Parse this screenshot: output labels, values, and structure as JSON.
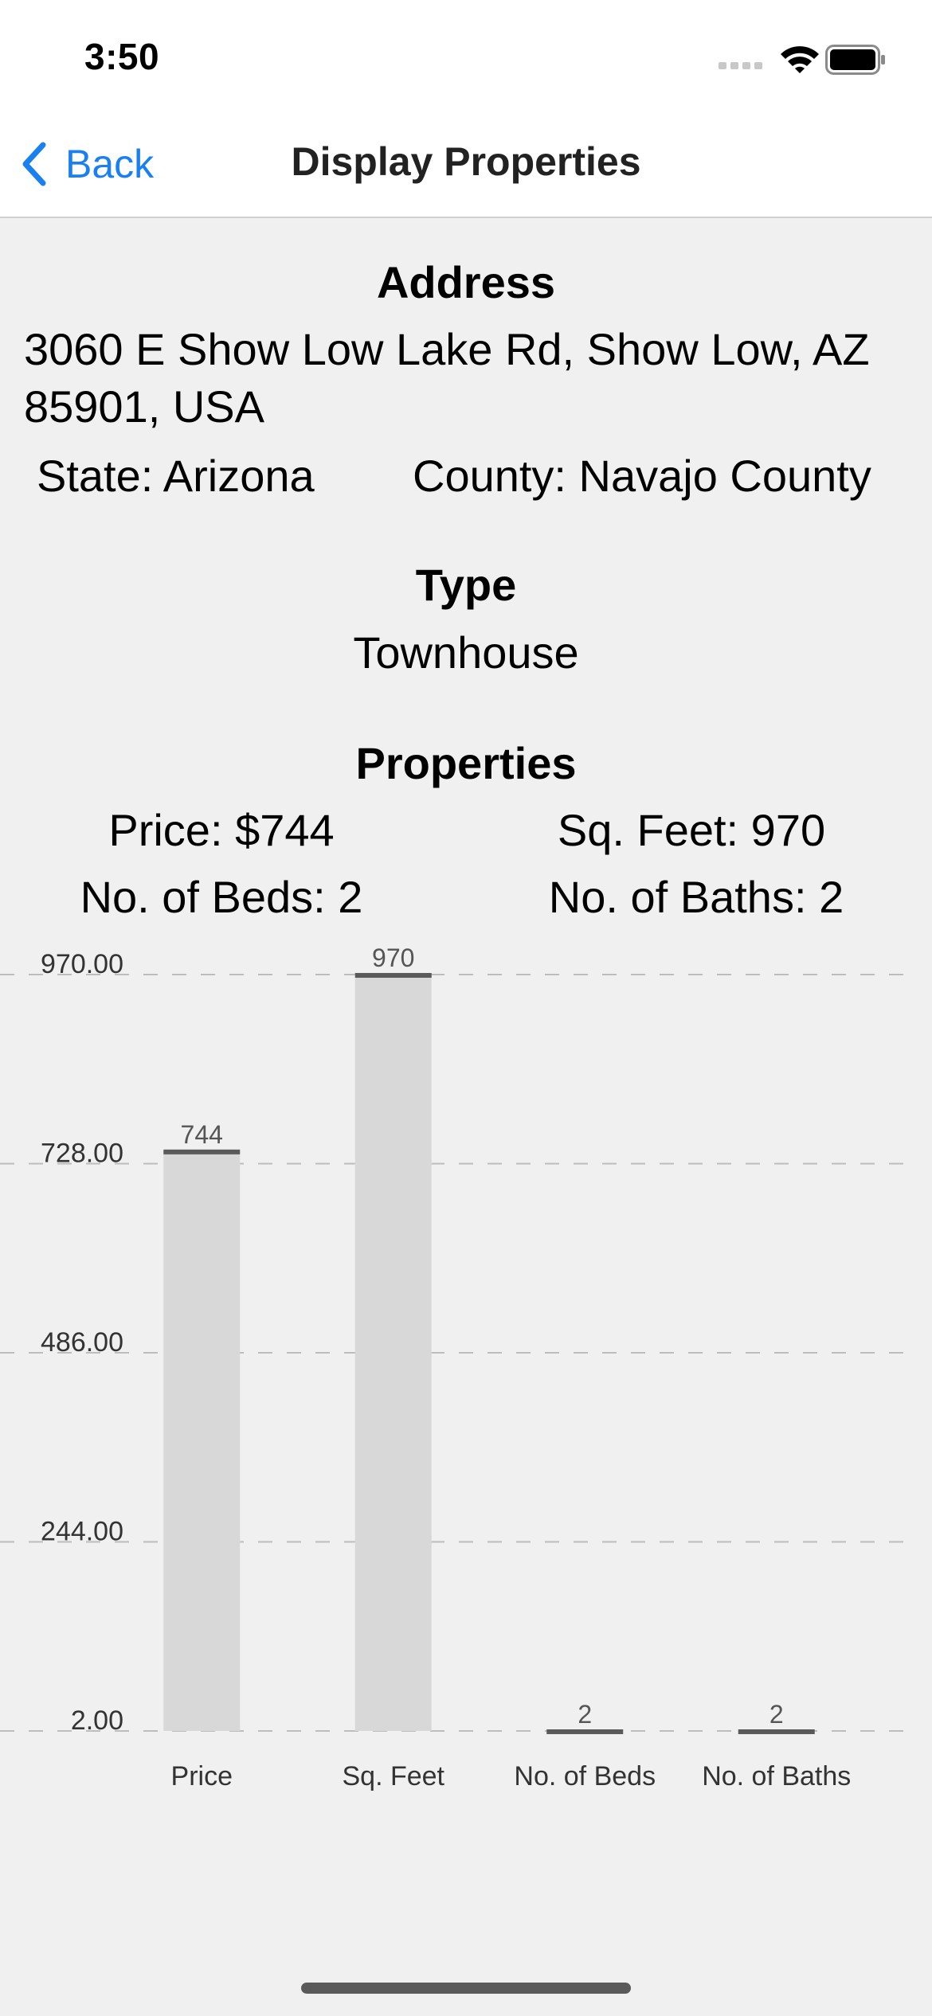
{
  "status_bar": {
    "time": "3:50",
    "icons": [
      "signal-icon",
      "wifi-icon",
      "battery-icon"
    ]
  },
  "nav": {
    "back_label": "Back",
    "title": "Display Properties",
    "accent_color": "#1a80f2"
  },
  "address": {
    "title": "Address",
    "value": "3060 E Show Low Lake Rd, Show Low, AZ 85901, USA",
    "state": "State: Arizona",
    "county": "County: Navajo County"
  },
  "type": {
    "title": "Type",
    "value": "Townhouse"
  },
  "properties": {
    "title": "Properties",
    "price": "Price: $744",
    "sqft": "Sq. Feet: 970",
    "beds": "No. of Beds: 2",
    "baths": "No. of Baths: 2"
  },
  "chart_data": {
    "type": "bar",
    "categories": [
      "Price",
      "Sq. Feet",
      "No. of Beds",
      "No. of Baths"
    ],
    "values": [
      744,
      970,
      2,
      2
    ],
    "value_labels": [
      "744",
      "970",
      "2",
      "2"
    ],
    "y_ticks": [
      "970.00",
      "728.00",
      "486.00",
      "244.00",
      "2.00"
    ],
    "y_tick_values": [
      970,
      728,
      486,
      244,
      2
    ],
    "ylim": [
      2,
      970
    ],
    "grid": true,
    "bar_color": "#d8d8d8",
    "cap_color": "#5a5a5a"
  }
}
